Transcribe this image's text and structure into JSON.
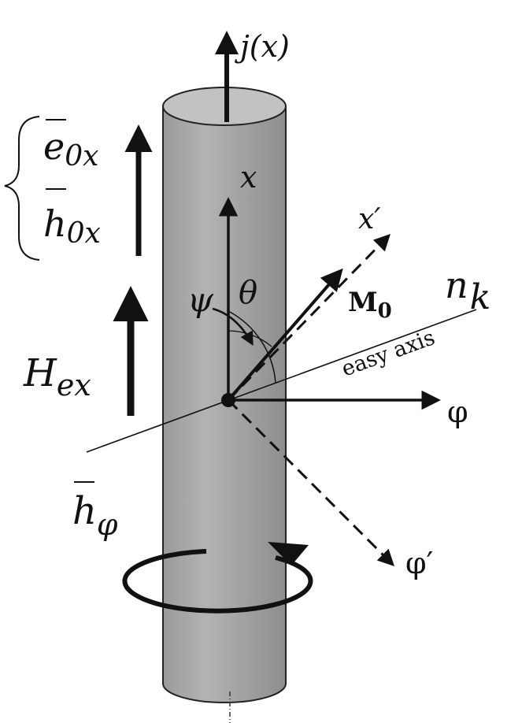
{
  "labels": {
    "current": "j(x)",
    "e0x_base": "e",
    "e0x_sub": "0x",
    "h0x_base": "h",
    "h0x_sub": "0x",
    "axis_x": "x",
    "axis_x_prime": "x′",
    "psi": "ψ",
    "theta": "θ",
    "m0_base": "M",
    "m0_sub": "0",
    "nk_base": "n",
    "nk_sub": "k",
    "easy_axis": "easy axis",
    "hex_base": "H",
    "hex_sub": "ex",
    "phi": "φ",
    "hphi_base": "h",
    "hphi_sub": "φ",
    "phi_prime": "φ′"
  },
  "colors": {
    "cylinder_body": "#a9a9a9",
    "cylinder_top": "#bdbdbd",
    "ink": "#111111"
  }
}
